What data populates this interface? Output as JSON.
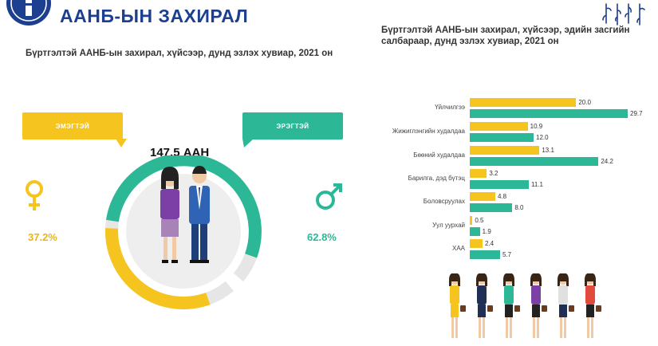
{
  "header": {
    "title": "ААНБ-ЫН ЗАХИРАЛ",
    "colors": {
      "brand": "#1d3f8f",
      "female": "#f5c41e",
      "male": "#2cb896"
    }
  },
  "left_panel": {
    "subtitle": "Бүртгэлтэй ААНБ-ын захирал, хүйсээр, дунд эзлэх хувиар, 2021 он",
    "female_label": "ЭМЭГТЭЙ",
    "male_label": "ЭРЭГТЭЙ",
    "total": "147.5 ААН",
    "female_pct_text": "37.2%",
    "male_pct_text": "62.8%"
  },
  "right_panel": {
    "subtitle": "Бүртгэлтэй ААНБ-ын захирал, хүйсээр, эдийн засгийн салбараар, дунд эзлэх хувиар, 2021 он"
  },
  "chart_data": [
    {
      "type": "pie",
      "categories": [
        "ЭМЭГТЭЙ",
        "ЭРЭГТЭЙ"
      ],
      "values": [
        37.2,
        62.8
      ],
      "title": "Бүртгэлтэй ААНБ-ын захирал, хүйсээр, дунд эзлэх хувиар, 2021 он"
    },
    {
      "type": "bar",
      "orientation": "horizontal",
      "title": "Бүртгэлтэй ААНБ-ын захирал, хүйсээр, эдийн засгийн салбараар, дунд эзлэх хувиар, 2021 он",
      "categories": [
        "Үйлчилгээ",
        "Жижиглэнгийн худалдаа",
        "Бөөний худалдаа",
        "Барилга, дэд бүтэц",
        "Боловсруулах",
        "Уул уурхай",
        "ХАА"
      ],
      "series": [
        {
          "values": [
            20.0,
            10.9,
            13.1,
            3.2,
            4.8,
            0.5,
            2.4
          ],
          "labels": [
            "20.0",
            "10.9",
            "13.1",
            "3.2",
            "4.8",
            "0.5",
            "2.4"
          ],
          "color": "#f5c41e"
        },
        {
          "values": [
            29.7,
            12.0,
            24.2,
            11.1,
            8.0,
            1.9,
            5.7
          ],
          "labels": [
            "29.7",
            "12.0",
            "24.2",
            "11.1",
            "8.0",
            "1.9",
            "5.7"
          ],
          "color": "#2cb896"
        }
      ],
      "xlim": [
        0,
        30
      ],
      "grid": false,
      "icons": [
        "female-symbol-icon",
        "male-symbol-icon",
        "businesspeople-illustration-icon",
        "businesswomen-illustration-icon"
      ]
    }
  ]
}
